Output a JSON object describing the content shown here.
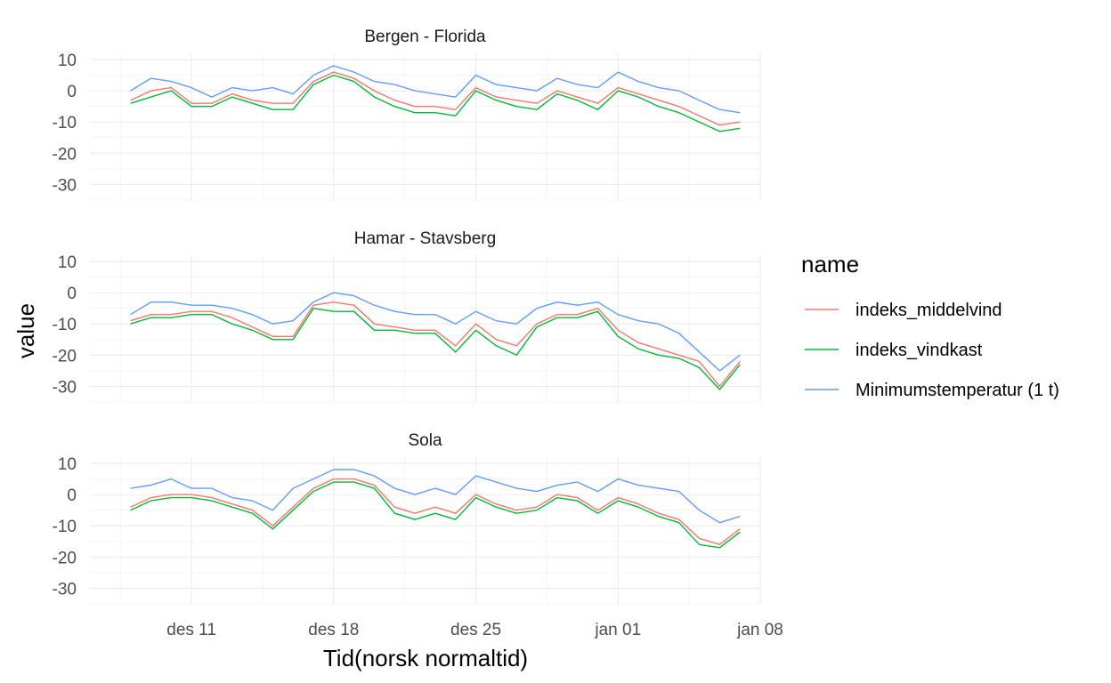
{
  "chart_data": {
    "type": "line",
    "facet_by": "station",
    "xlabel": "Tid(norsk normaltid)",
    "ylabel": "value",
    "x_range": [
      "2023-12-06",
      "2024-01-08"
    ],
    "x_ticks": [
      {
        "date": "2023-12-11",
        "label": "des 11"
      },
      {
        "date": "2023-12-18",
        "label": "des 18"
      },
      {
        "date": "2023-12-25",
        "label": "des 25"
      },
      {
        "date": "2024-01-01",
        "label": "jan 01"
      },
      {
        "date": "2024-01-08",
        "label": "jan 08"
      }
    ],
    "ylim": [
      -35,
      12
    ],
    "y_ticks": [
      10,
      0,
      -10,
      -20,
      -30
    ],
    "grid": true,
    "legend": {
      "title": "name",
      "placement": "right",
      "entries": [
        {
          "name": "indeks_middelvind",
          "color": "#F8766D"
        },
        {
          "name": "indeks_vindkast",
          "color": "#00BA38"
        },
        {
          "name": "Minimumstemperatur (1 t)",
          "color": "#619CFF"
        }
      ]
    },
    "x_dates": [
      "2023-12-08",
      "2023-12-09",
      "2023-12-10",
      "2023-12-11",
      "2023-12-12",
      "2023-12-13",
      "2023-12-14",
      "2023-12-15",
      "2023-12-16",
      "2023-12-17",
      "2023-12-18",
      "2023-12-19",
      "2023-12-20",
      "2023-12-21",
      "2023-12-22",
      "2023-12-23",
      "2023-12-24",
      "2023-12-25",
      "2023-12-26",
      "2023-12-27",
      "2023-12-28",
      "2023-12-29",
      "2023-12-30",
      "2023-12-31",
      "2024-01-01",
      "2024-01-02",
      "2024-01-03",
      "2024-01-04",
      "2024-01-05",
      "2024-01-06",
      "2024-01-07"
    ],
    "panels": [
      {
        "title": "Bergen - Florida",
        "series": [
          {
            "name": "Minimumstemperatur (1 t)",
            "values": [
              0,
              4,
              3,
              1,
              -2,
              1,
              0,
              1,
              -1,
              5,
              8,
              6,
              3,
              2,
              0,
              -1,
              -2,
              5,
              2,
              1,
              0,
              4,
              2,
              1,
              6,
              3,
              1,
              0,
              -3,
              -6,
              -7
            ]
          },
          {
            "name": "indeks_middelvind",
            "values": [
              -3,
              0,
              1,
              -4,
              -4,
              -1,
              -3,
              -4,
              -4,
              3,
              6,
              4,
              0,
              -3,
              -5,
              -5,
              -6,
              1,
              -2,
              -3,
              -4,
              0,
              -2,
              -4,
              1,
              -1,
              -3,
              -5,
              -8,
              -11,
              -10
            ]
          },
          {
            "name": "indeks_vindkast",
            "values": [
              -4,
              -2,
              0,
              -5,
              -5,
              -2,
              -4,
              -6,
              -6,
              2,
              5,
              3,
              -2,
              -5,
              -7,
              -7,
              -8,
              0,
              -3,
              -5,
              -6,
              -1,
              -3,
              -6,
              0,
              -2,
              -5,
              -7,
              -10,
              -13,
              -12
            ]
          }
        ]
      },
      {
        "title": "Hamar - Stavsberg",
        "series": [
          {
            "name": "Minimumstemperatur (1 t)",
            "values": [
              -7,
              -3,
              -3,
              -4,
              -4,
              -5,
              -7,
              -10,
              -9,
              -3,
              0,
              -1,
              -4,
              -6,
              -7,
              -7,
              -10,
              -6,
              -9,
              -10,
              -5,
              -3,
              -4,
              -3,
              -7,
              -9,
              -10,
              -13,
              -19,
              -25,
              -20
            ]
          },
          {
            "name": "indeks_middelvind",
            "values": [
              -9,
              -7,
              -7,
              -6,
              -6,
              -8,
              -11,
              -14,
              -14,
              -4,
              -3,
              -4,
              -10,
              -11,
              -12,
              -12,
              -17,
              -10,
              -15,
              -17,
              -10,
              -7,
              -7,
              -5,
              -12,
              -16,
              -18,
              -20,
              -22,
              -30,
              -22
            ]
          },
          {
            "name": "indeks_vindkast",
            "values": [
              -10,
              -8,
              -8,
              -7,
              -7,
              -10,
              -12,
              -15,
              -15,
              -5,
              -6,
              -6,
              -12,
              -12,
              -13,
              -13,
              -19,
              -12,
              -17,
              -20,
              -11,
              -8,
              -8,
              -6,
              -14,
              -18,
              -20,
              -21,
              -24,
              -31,
              -23
            ]
          }
        ]
      },
      {
        "title": "Sola",
        "series": [
          {
            "name": "Minimumstemperatur (1 t)",
            "values": [
              2,
              3,
              5,
              2,
              2,
              -1,
              -2,
              -5,
              2,
              5,
              8,
              8,
              6,
              2,
              0,
              2,
              0,
              6,
              4,
              2,
              1,
              3,
              4,
              1,
              5,
              3,
              2,
              1,
              -5,
              -9,
              -7
            ]
          },
          {
            "name": "indeks_middelvind",
            "values": [
              -4,
              -1,
              0,
              0,
              -1,
              -3,
              -5,
              -10,
              -4,
              2,
              5,
              5,
              3,
              -4,
              -6,
              -4,
              -6,
              0,
              -3,
              -5,
              -4,
              0,
              -1,
              -5,
              -1,
              -3,
              -6,
              -8,
              -14,
              -16,
              -11
            ]
          },
          {
            "name": "indeks_vindkast",
            "values": [
              -5,
              -2,
              -1,
              -1,
              -2,
              -4,
              -6,
              -11,
              -5,
              1,
              4,
              4,
              2,
              -6,
              -8,
              -6,
              -8,
              -1,
              -4,
              -6,
              -5,
              -1,
              -2,
              -6,
              -2,
              -4,
              -7,
              -9,
              -16,
              -17,
              -12
            ]
          }
        ]
      }
    ]
  }
}
